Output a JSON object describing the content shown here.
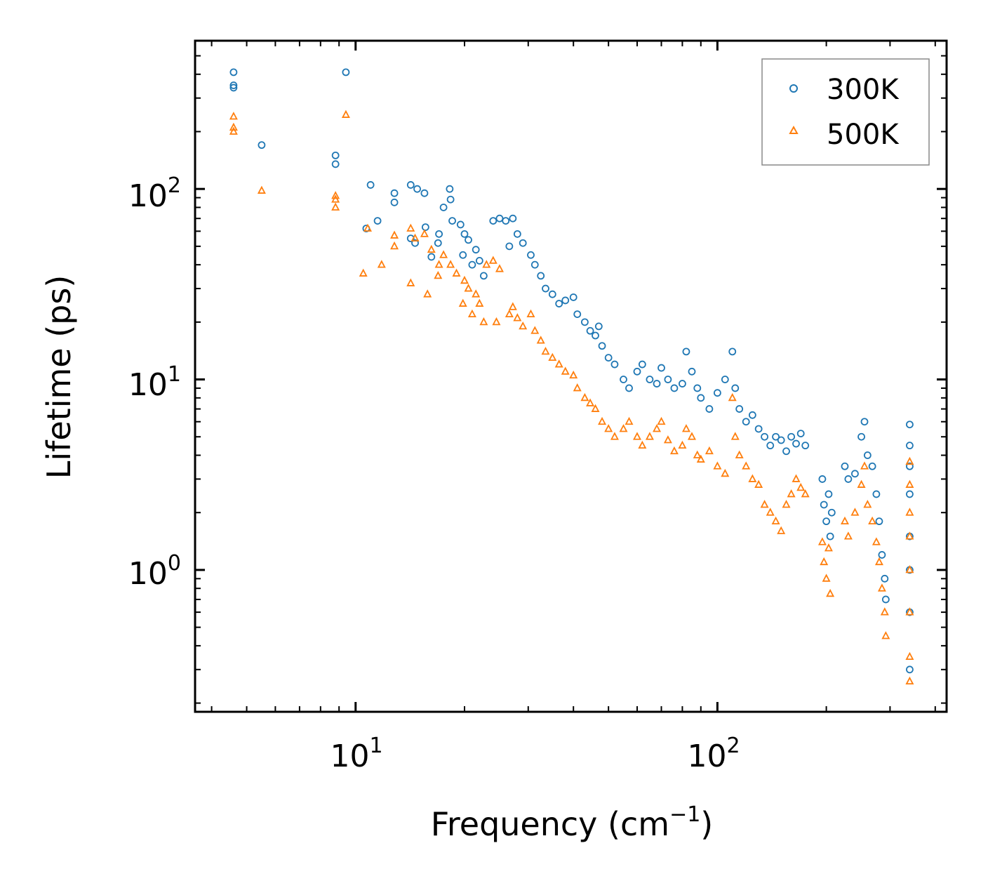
{
  "chart_data": {
    "type": "scatter",
    "title": "",
    "xlabel": "Frequency (cm",
    "xlabel_sup": "−1",
    "xlabel_end": ")",
    "ylabel": "Lifetime (ps)",
    "xscale": "log",
    "yscale": "log",
    "xlim": [
      3.6,
      430
    ],
    "ylim": [
      0.18,
      600
    ],
    "x_ticks": [
      {
        "value": 10,
        "base": "10",
        "exp": "1"
      },
      {
        "value": 100,
        "base": "10",
        "exp": "2"
      }
    ],
    "y_ticks": [
      {
        "value": 1,
        "base": "10",
        "exp": "0"
      },
      {
        "value": 10,
        "base": "10",
        "exp": "1"
      },
      {
        "value": 100,
        "base": "10",
        "exp": "2"
      }
    ],
    "legend_position": "top-right",
    "colors": {
      "s300": "#1f77b4",
      "s500": "#ff7f0e"
    },
    "series": [
      {
        "name": "300K",
        "marker": "circle-open",
        "color": "#1f77b4",
        "points": [
          [
            4.6,
            410
          ],
          [
            4.6,
            350
          ],
          [
            4.6,
            340
          ],
          [
            9.4,
            410
          ],
          [
            5.5,
            170
          ],
          [
            8.8,
            150
          ],
          [
            8.8,
            135
          ],
          [
            11,
            105
          ],
          [
            12.8,
            95
          ],
          [
            12.8,
            85
          ],
          [
            14.2,
            105
          ],
          [
            14.8,
            100
          ],
          [
            15.5,
            95
          ],
          [
            17.5,
            80
          ],
          [
            18.2,
            100
          ],
          [
            18.3,
            88
          ],
          [
            18.5,
            68
          ],
          [
            19.5,
            65
          ],
          [
            11.5,
            68
          ],
          [
            10.7,
            62
          ],
          [
            14.2,
            55
          ],
          [
            14.6,
            52
          ],
          [
            15.6,
            63
          ],
          [
            17,
            58
          ],
          [
            16.9,
            52
          ],
          [
            16.2,
            44
          ],
          [
            20,
            58
          ],
          [
            20.5,
            54
          ],
          [
            21.5,
            48
          ],
          [
            22,
            42
          ],
          [
            21,
            40
          ],
          [
            22.6,
            35
          ],
          [
            19.8,
            45
          ],
          [
            24,
            68
          ],
          [
            25,
            70
          ],
          [
            26,
            68
          ],
          [
            27.2,
            70
          ],
          [
            28,
            58
          ],
          [
            26.6,
            50
          ],
          [
            29,
            52
          ],
          [
            30.5,
            45
          ],
          [
            31.3,
            40
          ],
          [
            32.5,
            35
          ],
          [
            33.5,
            30
          ],
          [
            35,
            28
          ],
          [
            36.5,
            25
          ],
          [
            38,
            26
          ],
          [
            40,
            27
          ],
          [
            41,
            22
          ],
          [
            43,
            20
          ],
          [
            44.5,
            18
          ],
          [
            46,
            17
          ],
          [
            47,
            19
          ],
          [
            48,
            15
          ],
          [
            50,
            13
          ],
          [
            52,
            12
          ],
          [
            55,
            10
          ],
          [
            57,
            9
          ],
          [
            60,
            11
          ],
          [
            62,
            12
          ],
          [
            65,
            10
          ],
          [
            68,
            9.5
          ],
          [
            70,
            11.5
          ],
          [
            73,
            10
          ],
          [
            76,
            9
          ],
          [
            80,
            9.5
          ],
          [
            82,
            14
          ],
          [
            85,
            11
          ],
          [
            88,
            9
          ],
          [
            90,
            8
          ],
          [
            95,
            7
          ],
          [
            100,
            8.5
          ],
          [
            105,
            10
          ],
          [
            110,
            14
          ],
          [
            112,
            9
          ],
          [
            115,
            7
          ],
          [
            120,
            6
          ],
          [
            125,
            6.5
          ],
          [
            130,
            5.5
          ],
          [
            135,
            5
          ],
          [
            140,
            4.5
          ],
          [
            145,
            5
          ],
          [
            150,
            4.8
          ],
          [
            155,
            4.2
          ],
          [
            160,
            5
          ],
          [
            165,
            4.6
          ],
          [
            170,
            5.2
          ],
          [
            175,
            4.5
          ],
          [
            195,
            3
          ],
          [
            197,
            2.2
          ],
          [
            200,
            1.8
          ],
          [
            203,
            2.5
          ],
          [
            205,
            1.5
          ],
          [
            207,
            2
          ],
          [
            225,
            3.5
          ],
          [
            230,
            3
          ],
          [
            240,
            3.2
          ],
          [
            250,
            5
          ],
          [
            255,
            6
          ],
          [
            260,
            4
          ],
          [
            268,
            3.5
          ],
          [
            275,
            2.5
          ],
          [
            280,
            1.8
          ],
          [
            285,
            1.2
          ],
          [
            290,
            0.9
          ],
          [
            292,
            0.7
          ],
          [
            340,
            5.8
          ],
          [
            340,
            4.5
          ],
          [
            340,
            3.5
          ],
          [
            340,
            2.5
          ],
          [
            340,
            1.5
          ],
          [
            340,
            1
          ],
          [
            340,
            0.6
          ],
          [
            340,
            0.3
          ]
        ]
      },
      {
        "name": "500K",
        "marker": "triangle-open",
        "color": "#ff7f0e",
        "points": [
          [
            4.6,
            240
          ],
          [
            4.6,
            210
          ],
          [
            4.6,
            200
          ],
          [
            9.4,
            245
          ],
          [
            5.5,
            98
          ],
          [
            8.8,
            92
          ],
          [
            8.8,
            88
          ],
          [
            8.8,
            80
          ],
          [
            10.8,
            62
          ],
          [
            10.5,
            36
          ],
          [
            11.8,
            40
          ],
          [
            12.8,
            57
          ],
          [
            12.8,
            50
          ],
          [
            14.2,
            62
          ],
          [
            14.6,
            55
          ],
          [
            15.5,
            58
          ],
          [
            16.2,
            48
          ],
          [
            17,
            40
          ],
          [
            17.5,
            45
          ],
          [
            16.9,
            35
          ],
          [
            14.2,
            32
          ],
          [
            15.8,
            28
          ],
          [
            18.3,
            40
          ],
          [
            19,
            36
          ],
          [
            20,
            33
          ],
          [
            20.5,
            30
          ],
          [
            21.5,
            28
          ],
          [
            22,
            25
          ],
          [
            23,
            40
          ],
          [
            24,
            42
          ],
          [
            25,
            38
          ],
          [
            19.8,
            25
          ],
          [
            21,
            22
          ],
          [
            22.6,
            20
          ],
          [
            24.5,
            20
          ],
          [
            26.6,
            22
          ],
          [
            27.2,
            24
          ],
          [
            28,
            21
          ],
          [
            29,
            19
          ],
          [
            30.5,
            22
          ],
          [
            31.3,
            18
          ],
          [
            32.5,
            16
          ],
          [
            33.5,
            14
          ],
          [
            35,
            13
          ],
          [
            36.5,
            12
          ],
          [
            38,
            11
          ],
          [
            40,
            10.5
          ],
          [
            41,
            9
          ],
          [
            43,
            8
          ],
          [
            44.5,
            7.5
          ],
          [
            46,
            7
          ],
          [
            48,
            6
          ],
          [
            50,
            5.5
          ],
          [
            52,
            5
          ],
          [
            55,
            5.5
          ],
          [
            57,
            6
          ],
          [
            60,
            5
          ],
          [
            62,
            4.5
          ],
          [
            65,
            5
          ],
          [
            68,
            5.5
          ],
          [
            70,
            6
          ],
          [
            73,
            4.8
          ],
          [
            76,
            4.2
          ],
          [
            80,
            4.5
          ],
          [
            82,
            5.5
          ],
          [
            85,
            5
          ],
          [
            88,
            4
          ],
          [
            90,
            3.8
          ],
          [
            95,
            4.2
          ],
          [
            100,
            3.5
          ],
          [
            105,
            3.2
          ],
          [
            110,
            8
          ],
          [
            112,
            5
          ],
          [
            115,
            4
          ],
          [
            120,
            3.5
          ],
          [
            125,
            3
          ],
          [
            130,
            2.8
          ],
          [
            135,
            2.2
          ],
          [
            140,
            2
          ],
          [
            145,
            1.8
          ],
          [
            150,
            1.6
          ],
          [
            155,
            2.2
          ],
          [
            160,
            2.5
          ],
          [
            165,
            3
          ],
          [
            170,
            2.7
          ],
          [
            175,
            2.5
          ],
          [
            195,
            1.4
          ],
          [
            197,
            1.1
          ],
          [
            200,
            0.9
          ],
          [
            203,
            1.3
          ],
          [
            205,
            0.75
          ],
          [
            225,
            1.8
          ],
          [
            230,
            1.5
          ],
          [
            240,
            2
          ],
          [
            250,
            2.8
          ],
          [
            255,
            3.5
          ],
          [
            260,
            2.2
          ],
          [
            268,
            1.8
          ],
          [
            275,
            1.4
          ],
          [
            280,
            1.1
          ],
          [
            285,
            0.8
          ],
          [
            290,
            0.6
          ],
          [
            292,
            0.45
          ],
          [
            340,
            3.7
          ],
          [
            340,
            2.8
          ],
          [
            340,
            2
          ],
          [
            340,
            1.5
          ],
          [
            340,
            1
          ],
          [
            340,
            0.6
          ],
          [
            340,
            0.35
          ],
          [
            340,
            0.26
          ]
        ]
      }
    ]
  }
}
